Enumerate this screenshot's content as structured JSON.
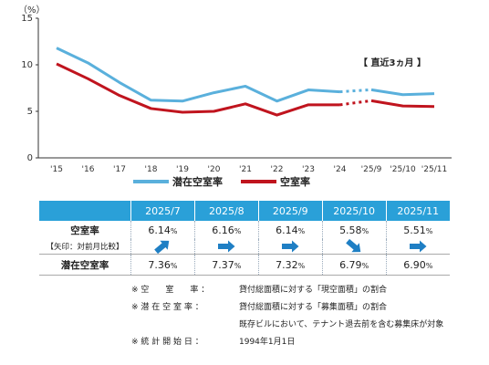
{
  "chart_data": {
    "type": "line",
    "y_unit_label": "（%）",
    "ylim": [
      0,
      15
    ],
    "yticks": [
      "0",
      "5",
      "10",
      "15"
    ],
    "categories": [
      "'15",
      "'16",
      "'17",
      "'18",
      "'19",
      "'20",
      "'21",
      "'22",
      "'23",
      "'24",
      "'25/9",
      "'25/10",
      "'25/11"
    ],
    "series": [
      {
        "name": "潜在空室率",
        "color": "#5ab0dc",
        "values": [
          11.8,
          10.2,
          8.1,
          6.2,
          6.1,
          7.0,
          7.7,
          6.1,
          7.3,
          7.1,
          7.32,
          6.79,
          6.9
        ]
      },
      {
        "name": "空室率",
        "color": "#c0141e",
        "values": [
          10.1,
          8.5,
          6.7,
          5.3,
          4.9,
          5.0,
          5.8,
          4.6,
          5.7,
          5.7,
          6.14,
          5.58,
          5.51
        ]
      }
    ],
    "annotation": "【 直近3ヵ月 】",
    "grid": false,
    "legend_position": "bottom-center"
  },
  "table": {
    "months": [
      "2025/7",
      "2025/8",
      "2025/9",
      "2025/10",
      "2025/11"
    ],
    "vacancy_label": "空室率",
    "arrow_label": "【矢印：対前月比較】",
    "latent_label": "潜在空室率",
    "vacancy": [
      {
        "num": "6.14",
        "unit": "%"
      },
      {
        "num": "6.16",
        "unit": "%"
      },
      {
        "num": "6.14",
        "unit": "%"
      },
      {
        "num": "5.58",
        "unit": "%"
      },
      {
        "num": "5.51",
        "unit": "%"
      }
    ],
    "arrows": [
      "up",
      "right",
      "right",
      "down",
      "right"
    ],
    "latent": [
      {
        "num": "7.36",
        "unit": "%"
      },
      {
        "num": "7.37",
        "unit": "%"
      },
      {
        "num": "7.32",
        "unit": "%"
      },
      {
        "num": "6.79",
        "unit": "%"
      },
      {
        "num": "6.90",
        "unit": "%"
      }
    ],
    "arrow_color": "#1f7fc4"
  },
  "notes": [
    {
      "key": "※ 空　　室　　率 ：",
      "text": "貸付総面積に対する「現空面積」の割合"
    },
    {
      "key": "※ 潜 在 空 室 率 ：",
      "text": "貸付総面積に対する「募集面積」の割合"
    },
    {
      "key": "",
      "text": "既存ビルにおいて、テナント退去前を含む募集床が対象"
    },
    {
      "key": "※ 統 計 開 始 日 ：",
      "text": "1994年1月1日"
    }
  ]
}
